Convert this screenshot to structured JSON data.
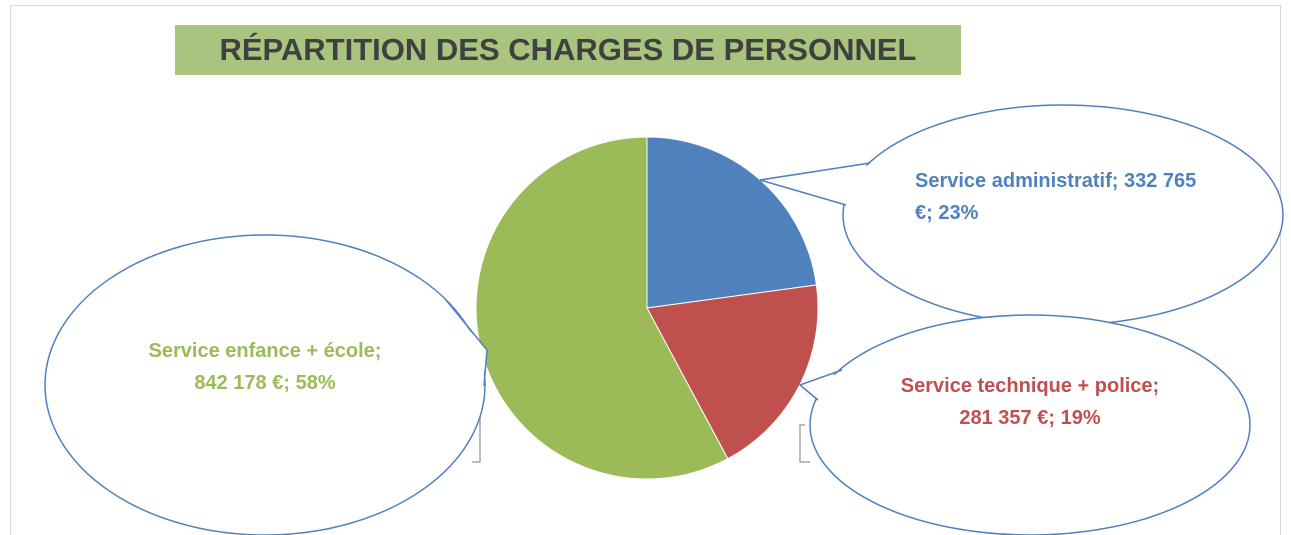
{
  "chart_data": {
    "type": "pie",
    "title": "RÉPARTITION DES CHARGES DE PERSONNEL",
    "categories": [
      "Service administratif",
      "Service technique + police",
      "Service enfance + école"
    ],
    "values": [
      332765,
      281357,
      842178
    ],
    "value_labels": [
      "Service administratif; 332 765 €; 23%",
      "Service technique + police; 281 357 €; 19%",
      "Service enfance + école; 842 178 €; 58%"
    ],
    "colors": [
      "#4f81bd",
      "#c0504d",
      "#9bbb59"
    ]
  }
}
